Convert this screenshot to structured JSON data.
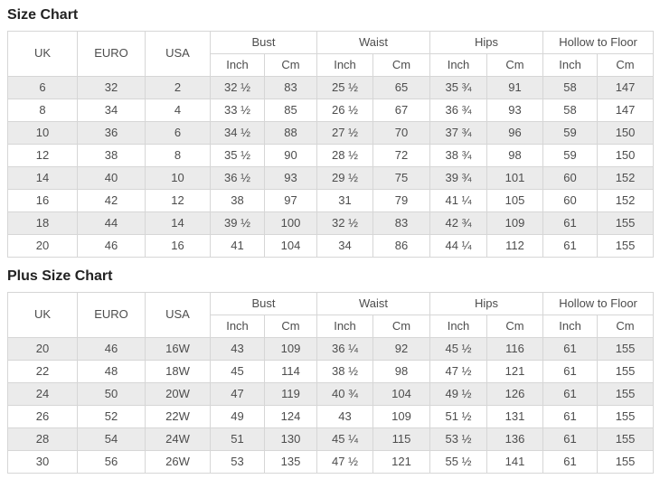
{
  "colors": {
    "stripe_row_bg": "#ebebeb",
    "table_border": "#d6d6d6",
    "cell_text": "#4d4d4d",
    "title_text": "#222222",
    "page_bg": "#ffffff"
  },
  "tables": [
    {
      "title": "Size Chart",
      "header": {
        "single_columns": [
          "UK",
          "EURO",
          "USA"
        ],
        "group_columns": [
          "Bust",
          "Waist",
          "Hips",
          "Hollow to Floor"
        ],
        "sub_columns": [
          "Inch",
          "Cm"
        ]
      },
      "rows": [
        [
          "6",
          "32",
          "2",
          "32 ½",
          "83",
          "25 ½",
          "65",
          "35 ¾",
          "91",
          "58",
          "147"
        ],
        [
          "8",
          "34",
          "4",
          "33 ½",
          "85",
          "26 ½",
          "67",
          "36 ¾",
          "93",
          "58",
          "147"
        ],
        [
          "10",
          "36",
          "6",
          "34 ½",
          "88",
          "27 ½",
          "70",
          "37 ¾",
          "96",
          "59",
          "150"
        ],
        [
          "12",
          "38",
          "8",
          "35 ½",
          "90",
          "28 ½",
          "72",
          "38 ¾",
          "98",
          "59",
          "150"
        ],
        [
          "14",
          "40",
          "10",
          "36 ½",
          "93",
          "29 ½",
          "75",
          "39 ¾",
          "101",
          "60",
          "152"
        ],
        [
          "16",
          "42",
          "12",
          "38",
          "97",
          "31",
          "79",
          "41 ¼",
          "105",
          "60",
          "152"
        ],
        [
          "18",
          "44",
          "14",
          "39 ½",
          "100",
          "32 ½",
          "83",
          "42 ¾",
          "109",
          "61",
          "155"
        ],
        [
          "20",
          "46",
          "16",
          "41",
          "104",
          "34",
          "86",
          "44 ¼",
          "112",
          "61",
          "155"
        ]
      ]
    },
    {
      "title": "Plus Size Chart",
      "header": {
        "single_columns": [
          "UK",
          "EURO",
          "USA"
        ],
        "group_columns": [
          "Bust",
          "Waist",
          "Hips",
          "Hollow to Floor"
        ],
        "sub_columns": [
          "Inch",
          "Cm"
        ]
      },
      "rows": [
        [
          "20",
          "46",
          "16W",
          "43",
          "109",
          "36 ¼",
          "92",
          "45 ½",
          "116",
          "61",
          "155"
        ],
        [
          "22",
          "48",
          "18W",
          "45",
          "114",
          "38 ½",
          "98",
          "47 ½",
          "121",
          "61",
          "155"
        ],
        [
          "24",
          "50",
          "20W",
          "47",
          "119",
          "40 ¾",
          "104",
          "49 ½",
          "126",
          "61",
          "155"
        ],
        [
          "26",
          "52",
          "22W",
          "49",
          "124",
          "43",
          "109",
          "51 ½",
          "131",
          "61",
          "155"
        ],
        [
          "28",
          "54",
          "24W",
          "51",
          "130",
          "45 ¼",
          "115",
          "53 ½",
          "136",
          "61",
          "155"
        ],
        [
          "30",
          "56",
          "26W",
          "53",
          "135",
          "47 ½",
          "121",
          "55 ½",
          "141",
          "61",
          "155"
        ]
      ]
    }
  ]
}
